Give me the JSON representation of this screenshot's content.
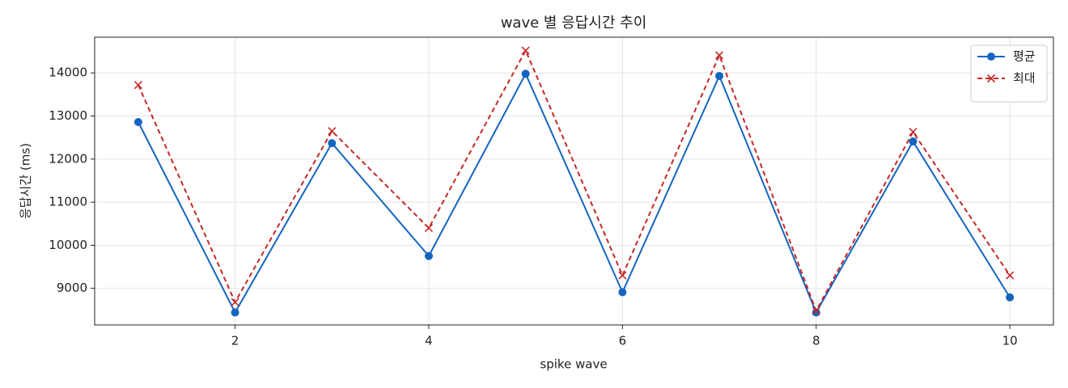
{
  "chart_data": {
    "type": "line",
    "title": "wave 별 응답시간 추이",
    "xlabel": "spike wave",
    "ylabel": "응답시간 (ms)",
    "x": [
      1,
      2,
      3,
      4,
      5,
      6,
      7,
      8,
      9,
      10
    ],
    "series": [
      {
        "name": "평균",
        "color": "#1565c0",
        "linestyle": "solid",
        "marker": "o",
        "values": [
          12860,
          8440,
          12370,
          9750,
          13980,
          8910,
          13930,
          8440,
          12410,
          8790
        ]
      },
      {
        "name": "최대",
        "color": "#c62828",
        "linestyle": "dashed",
        "marker": "x",
        "values": [
          13720,
          8680,
          12650,
          10400,
          14520,
          9300,
          14410,
          8480,
          12630,
          9300
        ]
      }
    ],
    "xlim": [
      0.55,
      10.45
    ],
    "xticks": [
      2,
      4,
      6,
      8,
      10
    ],
    "ylim": [
      8150,
      14830
    ],
    "yticks": [
      9000,
      10000,
      11000,
      12000,
      13000,
      14000
    ],
    "grid": true,
    "legend": "upper right"
  }
}
